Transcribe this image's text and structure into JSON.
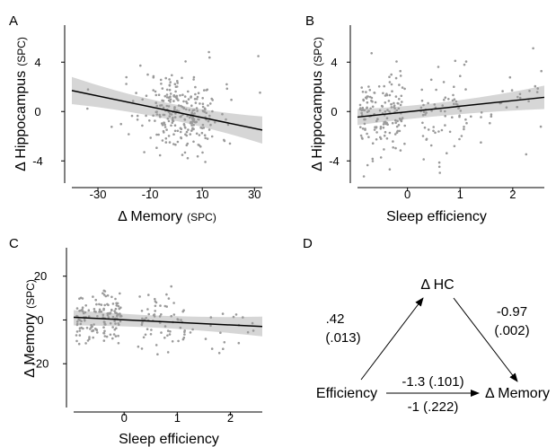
{
  "chart_data": [
    {
      "type": "scatter",
      "panel": "A",
      "xlabel": "Δ Memory",
      "xlabel_unit": "(SPC)",
      "ylabel": "Δ Hippocampus",
      "ylabel_unit": "(SPC)",
      "x_ticks": [
        -30,
        -10,
        10,
        30
      ],
      "y_ticks": [
        4,
        0,
        -4
      ],
      "xlim": [
        -40,
        33
      ],
      "ylim": [
        -5.8,
        7.0
      ],
      "fit": {
        "x0": -40,
        "y0": 1.7,
        "x1": 33,
        "y1": -1.5
      },
      "band": {
        "lower_start": 0.6,
        "upper_start": 2.8,
        "lower_mid": -0.2,
        "upper_mid": 0.2,
        "lower_end": -2.6,
        "upper_end": -0.4
      }
    },
    {
      "type": "scatter",
      "panel": "B",
      "xlabel": "Sleep efficiency",
      "ylabel": "Δ Hippocampus",
      "ylabel_unit": "(SPC)",
      "x_ticks": [
        0,
        1,
        2
      ],
      "y_ticks": [
        4,
        0,
        -4
      ],
      "xlim": [
        -0.95,
        2.6
      ],
      "ylim": [
        -5.8,
        7.0
      ],
      "fit": {
        "x0": -0.95,
        "y0": -0.45,
        "x1": 2.6,
        "y1": 1.15
      },
      "band": {
        "lower_start": -1.1,
        "upper_start": 0.2,
        "lower_mid": -0.1,
        "upper_mid": 0.5,
        "lower_end": 0.2,
        "upper_end": 2.1
      }
    },
    {
      "type": "scatter",
      "panel": "C",
      "xlabel": "Sleep efficiency",
      "ylabel": "Δ Memory",
      "ylabel_unit": "(SPC)",
      "x_ticks": [
        0,
        1,
        2
      ],
      "y_ticks": [
        20,
        0,
        -20
      ],
      "xlim": [
        -0.95,
        2.6
      ],
      "ylim": [
        -40,
        33
      ],
      "fit": {
        "x0": -0.95,
        "y0": 1.2,
        "x1": 2.6,
        "y1": -3.0
      },
      "band": {
        "lower_start": -2.5,
        "upper_start": 4.5,
        "lower_mid": -2.6,
        "upper_mid": 0.6,
        "lower_end": -7.5,
        "upper_end": 1.5
      }
    }
  ],
  "panels": {
    "a": "A",
    "b": "B",
    "c": "C",
    "d": "D"
  },
  "diagram": {
    "top_node": "Δ HC",
    "left_node": "Efficiency",
    "right_node": "Δ Memory",
    "left_path": ".42",
    "left_path_p": "(.013)",
    "right_path": "-0.97",
    "right_path_p": "(.002)",
    "direct_indirect": "-1.3 (.101)",
    "direct_total": "-1 (.222)"
  },
  "colors": {
    "points": "#9a9a9a",
    "band": "#cfcfcf",
    "line": "#000000"
  }
}
